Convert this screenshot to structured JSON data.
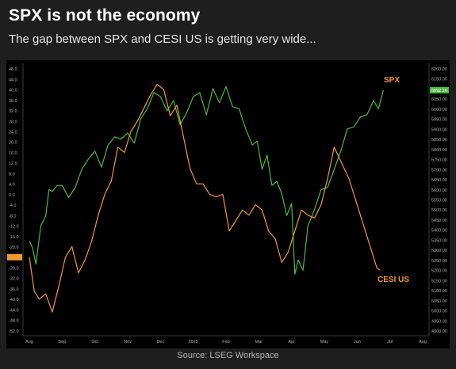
{
  "header": {
    "title": "SPX is not the economy",
    "subtitle": "The gap between SPX and CESI US is getting very wide..."
  },
  "footer": {
    "source": "Source: LSEG Workspace"
  },
  "colors": {
    "background": "#000000",
    "spx": "#4cbb3a",
    "cesi": "#f39a2e",
    "axis_text": "#b5b5b5",
    "page": "#1e1e1e"
  },
  "chart_data": {
    "type": "line",
    "title": "",
    "grid": false,
    "x_tick_labels": [
      "Aug",
      "Sep",
      "Oct",
      "Nov",
      "Dec",
      "2025",
      "Feb",
      "Mar",
      "Apr",
      "May",
      "Jun",
      "Jul",
      "Aug"
    ],
    "left_axis": {
      "ylim": [
        -54,
        50
      ],
      "ticks": [
        "48.0",
        "44.0",
        "40.0",
        "36.0",
        "32.0",
        "28.0",
        "24.0",
        "20.0",
        "16.0",
        "12.0",
        "8.0",
        "4.0",
        "0.0",
        "-4.0",
        "-8.0",
        "-12.0",
        "-16.0",
        "-20.0",
        "-24.0",
        "-28.0",
        "-32.0",
        "-36.0",
        "-40.0",
        "-44.0",
        "-48.0",
        "-52.0"
      ]
    },
    "right_axis": {
      "ylim": [
        4875,
        6225
      ],
      "ticks": [
        "6200.00",
        "6150.00",
        "6100.00",
        "6050.00",
        "6000.00",
        "5950.00",
        "5900.00",
        "5850.00",
        "5800.00",
        "5750.00",
        "5700.00",
        "5650.00",
        "5600.00",
        "5550.00",
        "5500.00",
        "5450.00",
        "5400.00",
        "5350.00",
        "5300.00",
        "5250.00",
        "5200.00",
        "5150.00",
        "5100.00",
        "5050.00",
        "5000.00",
        "4950.00",
        "4900.00"
      ]
    },
    "series": [
      {
        "name": "SPX",
        "axis": "right",
        "color": "#4cbb3a",
        "last_value_label": "6092.16",
        "x": [
          0.0,
          0.1,
          0.2,
          0.35,
          0.5,
          0.6,
          0.7,
          0.85,
          1.0,
          1.2,
          1.4,
          1.6,
          1.8,
          2.0,
          2.2,
          2.4,
          2.6,
          2.8,
          3.0,
          3.2,
          3.4,
          3.6,
          3.8,
          4.0,
          4.2,
          4.4,
          4.6,
          4.8,
          5.0,
          5.2,
          5.4,
          5.6,
          5.8,
          6.0,
          6.2,
          6.4,
          6.6,
          6.8,
          6.95,
          7.1,
          7.25,
          7.4,
          7.55,
          7.7,
          7.85,
          8.0,
          8.1,
          8.2,
          8.35,
          8.5,
          8.7,
          8.9,
          9.1,
          9.3,
          9.5,
          9.7,
          9.9,
          10.1,
          10.3,
          10.5,
          10.65,
          10.8
        ],
        "values": [
          5345,
          5310,
          5230,
          5420,
          5470,
          5600,
          5590,
          5620,
          5620,
          5560,
          5610,
          5700,
          5750,
          5790,
          5710,
          5820,
          5860,
          5850,
          5880,
          5830,
          5950,
          6000,
          6080,
          6060,
          5990,
          6040,
          5920,
          5980,
          6060,
          6080,
          5970,
          6100,
          6030,
          6110,
          6010,
          6000,
          5900,
          5820,
          5840,
          5700,
          5770,
          5620,
          5640,
          5580,
          5470,
          5530,
          5180,
          5250,
          5200,
          5420,
          5500,
          5600,
          5610,
          5700,
          5790,
          5900,
          5910,
          5960,
          5970,
          6040,
          6000,
          6092
        ]
      },
      {
        "name": "CESI US",
        "axis": "left",
        "color": "#f39a2e",
        "x": [
          0.0,
          0.15,
          0.3,
          0.5,
          0.7,
          0.9,
          1.1,
          1.3,
          1.5,
          1.7,
          1.9,
          2.1,
          2.3,
          2.5,
          2.7,
          2.9,
          3.1,
          3.3,
          3.5,
          3.7,
          3.9,
          4.1,
          4.3,
          4.5,
          4.7,
          4.9,
          5.1,
          5.3,
          5.5,
          5.7,
          5.9,
          6.1,
          6.3,
          6.5,
          6.7,
          6.9,
          7.1,
          7.3,
          7.5,
          7.7,
          7.9,
          8.1,
          8.3,
          8.5,
          8.7,
          8.9,
          9.1,
          9.3,
          9.45,
          9.6,
          9.75,
          9.9,
          10.05,
          10.2,
          10.35,
          10.5,
          10.6,
          10.7
        ],
        "values": [
          -24,
          -37,
          -40,
          -38,
          -45,
          -35,
          -24,
          -20,
          -30,
          -25,
          -18,
          -8,
          0,
          5,
          18,
          16,
          24,
          28,
          33,
          38,
          42,
          40,
          30,
          34,
          22,
          10,
          4,
          4,
          0,
          -1,
          0,
          -14,
          -10,
          -6,
          -8,
          -4,
          -6,
          -14,
          -17,
          -26,
          -22,
          -14,
          -6,
          -8,
          -9,
          -4,
          6,
          18,
          14,
          10,
          6,
          0,
          -6,
          -12,
          -18,
          -24,
          -28,
          -29
        ]
      }
    ],
    "annotations": [
      {
        "label": "SPX",
        "color": "#f39a2e"
      },
      {
        "label": "CESI US",
        "color": "#f39a2e"
      }
    ]
  }
}
